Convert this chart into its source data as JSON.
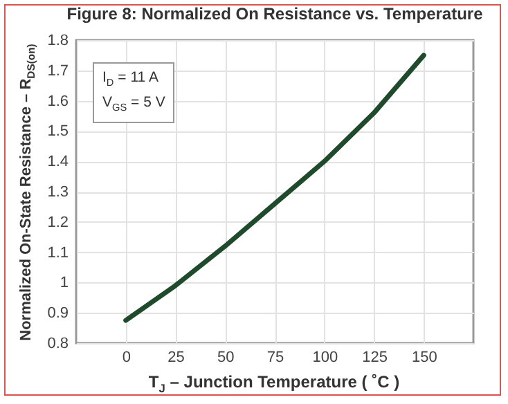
{
  "chart_data": {
    "type": "line",
    "title": "Figure 8: Normalized On Resistance vs. Temperature",
    "xlabel": "T$_{J}$ – Junction Temperature ( ˚C )",
    "ylabel": "Normalized On-State Resistance – R$_{DS(on)}$",
    "annotations": [
      "I$_{D}$ = 11 A",
      "V$_{GS}$ = 5 V"
    ],
    "x": [
      0,
      25,
      50,
      75,
      100,
      125,
      150
    ],
    "series": [
      {
        "color": "#1f4a2c",
        "values": [
          0.875,
          0.99,
          1.12,
          1.26,
          1.4,
          1.56,
          1.75
        ]
      }
    ],
    "xlim": [
      -25,
      175
    ],
    "xticks": [
      0,
      25,
      50,
      75,
      100,
      125,
      150
    ],
    "ylim": [
      0.8,
      1.8
    ],
    "yticks": [
      0.8,
      0.9,
      1,
      1.1,
      1.2,
      1.3,
      1.4,
      1.5,
      1.6,
      1.7,
      1.8
    ],
    "grid": true,
    "legend": false,
    "marker": "none",
    "line_style": "solid"
  }
}
